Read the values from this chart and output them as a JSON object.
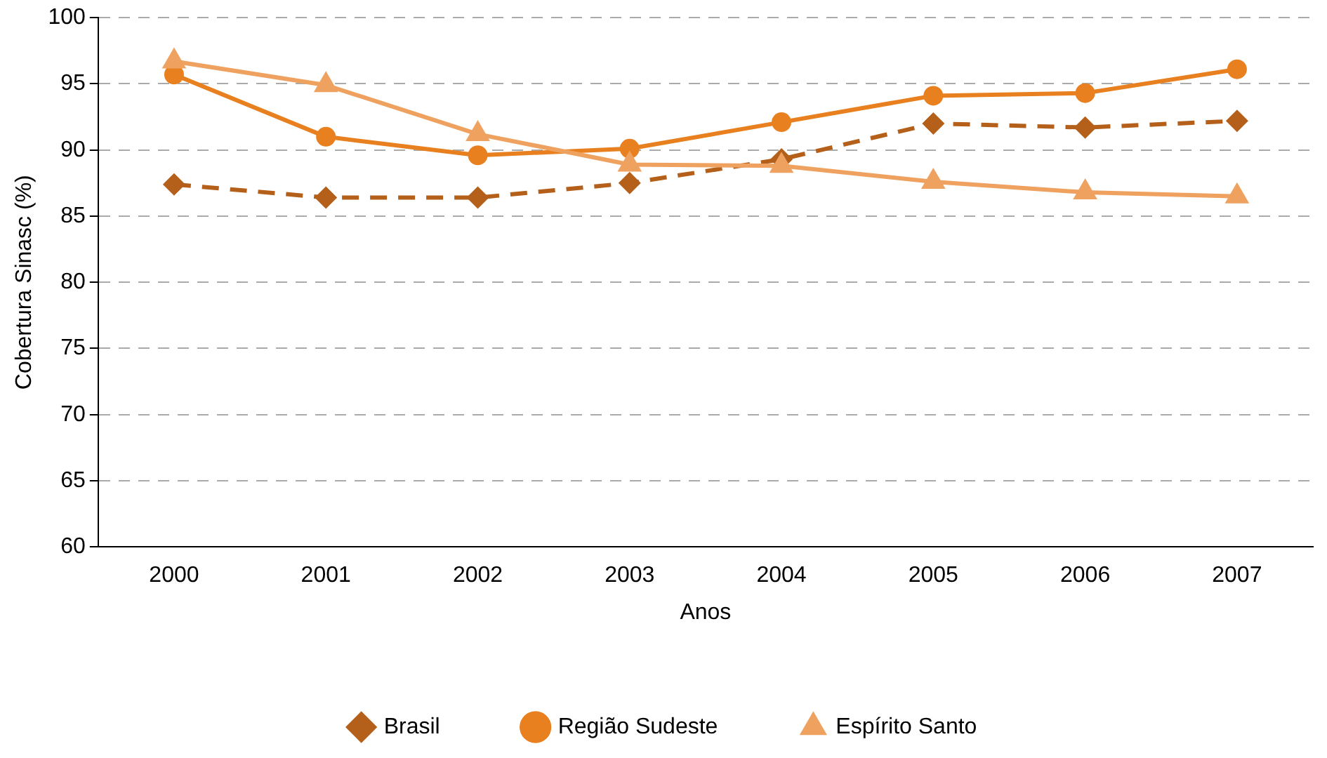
{
  "chart_data": {
    "type": "line",
    "xlabel": "Anos",
    "ylabel": "Cobertura Sinasc (%)",
    "categories": [
      "2000",
      "2001",
      "2002",
      "2003",
      "2004",
      "2005",
      "2006",
      "2007"
    ],
    "series": [
      {
        "name": "Brasil",
        "color": "#b5601a",
        "marker": "diamond",
        "line_style": "dashed",
        "values": [
          87.4,
          86.4,
          86.4,
          87.5,
          89.3,
          92.0,
          91.7,
          92.2
        ]
      },
      {
        "name": "Região Sudeste",
        "color": "#e8801f",
        "marker": "circle",
        "line_style": "solid",
        "values": [
          95.7,
          91.0,
          89.6,
          90.1,
          92.1,
          94.1,
          94.3,
          96.1
        ]
      },
      {
        "name": "Espírito Santo",
        "color": "#efa15f",
        "marker": "triangle",
        "line_style": "solid",
        "values": [
          96.7,
          94.9,
          91.2,
          88.9,
          88.8,
          87.6,
          86.8,
          86.5
        ]
      }
    ],
    "ylim": [
      60,
      100
    ],
    "yticks": [
      60,
      65,
      70,
      75,
      80,
      85,
      90,
      95,
      100
    ],
    "grid": "y",
    "legend": "bottom"
  }
}
